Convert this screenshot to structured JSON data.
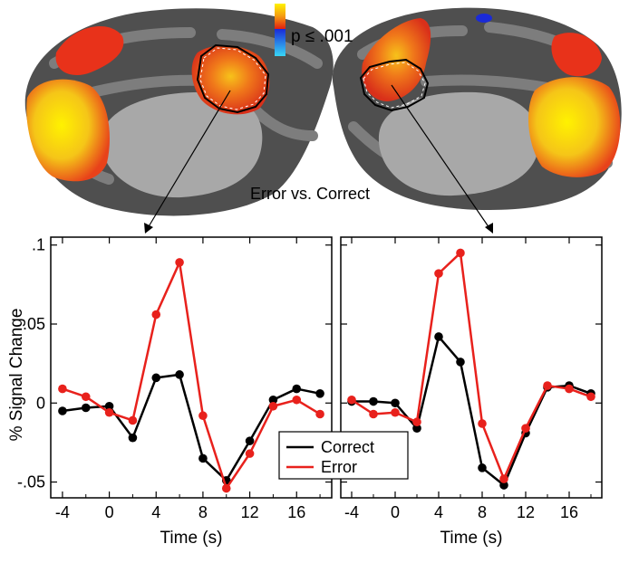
{
  "figure": {
    "contrast_label": "Error vs. Correct",
    "colorbar_label": "p ≤ .001",
    "y_axis_label": "% Signal Change",
    "legend": {
      "correct": "Correct",
      "error": "Error"
    },
    "colors": {
      "correct": "#000000",
      "error": "#e8211c",
      "brain_dark": "#4d4d4d",
      "brain_light": "#7b7b7b",
      "wall": "#a8a8a8",
      "activation_hot": "#e8421a",
      "activation_peak": "#f7e81a"
    }
  },
  "chart_data": [
    {
      "type": "line",
      "panel": "left",
      "title": "",
      "xlabel": "Time (s)",
      "ylabel": "% Signal Change",
      "xlim": [
        -5,
        19
      ],
      "ylim": [
        -0.06,
        0.105
      ],
      "x_ticks": [
        -4,
        0,
        4,
        8,
        12,
        16
      ],
      "x_tick_labels": [
        "-4",
        "0",
        "4",
        "8",
        "12",
        "16"
      ],
      "y_ticks": [
        0.1,
        0.05,
        0,
        -0.05
      ],
      "y_tick_labels": [
        ".1",
        ".05",
        "0",
        "-.05"
      ],
      "x": [
        -4,
        -2,
        0,
        2,
        4,
        6,
        8,
        10,
        12,
        14,
        16,
        18
      ],
      "series": [
        {
          "name": "Correct",
          "values": [
            -0.005,
            -0.003,
            -0.002,
            -0.022,
            0.016,
            0.018,
            -0.035,
            -0.049,
            -0.024,
            0.002,
            0.009,
            0.006
          ]
        },
        {
          "name": "Error",
          "values": [
            0.009,
            0.004,
            -0.006,
            -0.011,
            0.056,
            0.089,
            -0.008,
            -0.054,
            -0.032,
            -0.002,
            0.002,
            -0.007
          ]
        }
      ]
    },
    {
      "type": "line",
      "panel": "right",
      "title": "",
      "xlabel": "Time (s)",
      "ylabel": "",
      "xlim": [
        -5,
        19
      ],
      "ylim": [
        -0.06,
        0.105
      ],
      "x_ticks": [
        -4,
        0,
        4,
        8,
        12,
        16
      ],
      "x_tick_labels": [
        "-4",
        "0",
        "4",
        "8",
        "12",
        "16"
      ],
      "y_ticks": [
        0.1,
        0.05,
        0,
        -0.05
      ],
      "y_tick_labels": [],
      "x": [
        -4,
        -2,
        0,
        2,
        4,
        6,
        8,
        10,
        12,
        14,
        16,
        18
      ],
      "series": [
        {
          "name": "Correct",
          "values": [
            0.001,
            0.001,
            0.0,
            -0.016,
            0.042,
            0.026,
            -0.041,
            -0.052,
            -0.019,
            0.01,
            0.011,
            0.006
          ]
        },
        {
          "name": "Error",
          "values": [
            0.002,
            -0.007,
            -0.006,
            -0.012,
            0.082,
            0.095,
            -0.013,
            -0.048,
            -0.016,
            0.011,
            0.009,
            0.004
          ]
        }
      ]
    }
  ]
}
